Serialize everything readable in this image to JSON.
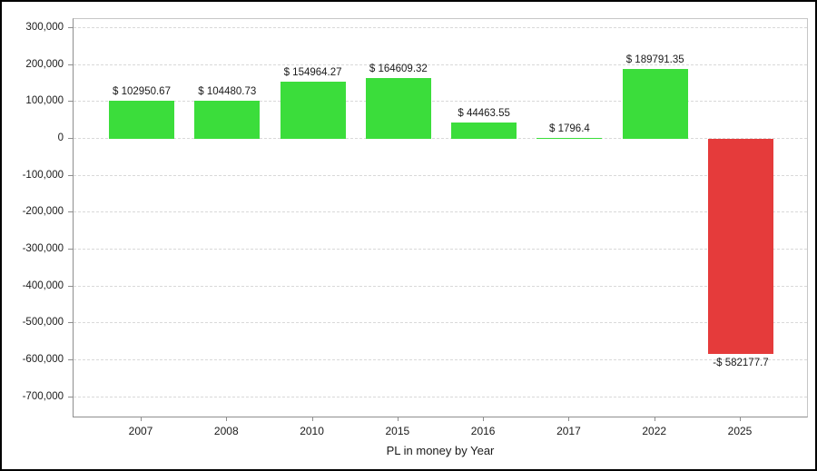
{
  "chart_data": {
    "type": "bar",
    "title": "",
    "xlabel": "PL in money by Year",
    "ylabel": "",
    "categories": [
      "2007",
      "2008",
      "2010",
      "2015",
      "2016",
      "2017",
      "2022",
      "2025"
    ],
    "values": [
      102950.67,
      104480.73,
      154964.27,
      164609.32,
      44463.55,
      1796.4,
      189791.35,
      -582177.7
    ],
    "bar_labels": [
      "$ 102950.67",
      "$ 104480.73",
      "$ 154964.27",
      "$ 164609.32",
      "$ 44463.55",
      "$ 1796.4",
      "$ 189791.35",
      "-$ 582177.7"
    ],
    "ylim": [
      -757000,
      325000
    ],
    "yticks": [
      300000,
      200000,
      100000,
      0,
      -100000,
      -200000,
      -300000,
      -400000,
      -500000,
      -600000,
      -700000
    ],
    "ytick_labels": [
      "300,000",
      "200,000",
      "100,000",
      "0",
      "-100,000",
      "-200,000",
      "-300,000",
      "-400,000",
      "-500,000",
      "-600,000",
      "-700,000"
    ],
    "grid": true,
    "legend": false,
    "colors": {
      "positive_bar": "#3bdd3b",
      "negative_bar": "#e53b3b",
      "grid_line": "#d9d9d9",
      "axis_line": "#8e8e8e",
      "plot_border": "#c6c6c6",
      "text": "#1a1a1a",
      "frame": "#000000",
      "background": "#ffffff"
    }
  }
}
